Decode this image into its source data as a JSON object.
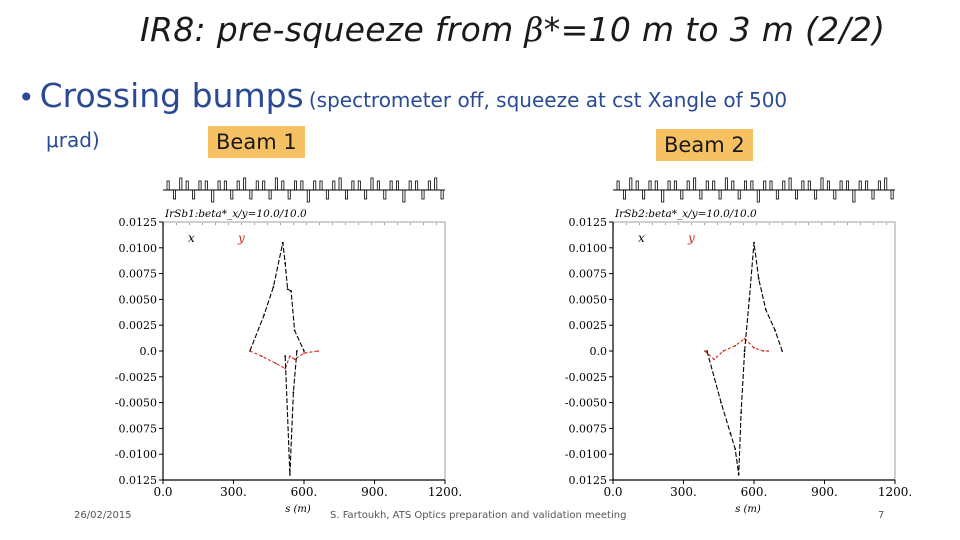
{
  "slide": {
    "title_prefix": "IR8: pre-squeeze from ",
    "title_beta": "β",
    "title_suffix": "*=10 m to 3 m (2/2)",
    "bullet_main": "Crossing bumps",
    "bullet_detail": "(spectrometer off, squeeze at cst Xangle of 500",
    "bullet_cont": "μrad)",
    "footer_date": "26/02/2015",
    "footer_center": "S. Fartoukh,  ATS Optics preparation and validation meeting",
    "footer_page": "7"
  },
  "colors": {
    "title": "#1a1a1a",
    "bullet": "#2b4a96",
    "beam_label_bg": "#f5c163",
    "series_x": "#000000",
    "series_y": "#cc2a1a"
  },
  "chart_data": [
    {
      "type": "line",
      "panel_label": "Beam 1",
      "plot_title": "IrSb1:beta*_x/y=10.0/10.0",
      "xlabel": "s (m)",
      "x_ticks": [
        "0.0",
        "300.",
        "600.",
        "900.",
        "1200."
      ],
      "y_ticks": [
        "0.0125",
        "0.0100",
        "0.0075",
        "0.0050",
        "0.0025",
        "0.0",
        "-0.0025",
        "-0.0050",
        "0.0075",
        "-0.0100",
        "0.0125"
      ],
      "xlim": [
        0,
        1200
      ],
      "ylim": [
        -0.0125,
        0.0125
      ],
      "legend": [
        "x",
        "y"
      ],
      "series": [
        {
          "name": "x",
          "x": [
            370,
            430,
            470,
            510,
            520,
            530,
            545,
            560,
            600
          ],
          "y": [
            0.0,
            0.0035,
            0.0062,
            0.0105,
            0.0085,
            0.006,
            0.0058,
            0.002,
            0.0
          ]
        },
        {
          "name": "y",
          "x": [
            370,
            420,
            480,
            520,
            540,
            560,
            600,
            660
          ],
          "y": [
            0.0,
            -0.0005,
            -0.0012,
            -0.0017,
            -0.0005,
            -0.0008,
            -0.0002,
            0.0
          ]
        },
        {
          "name": "x",
          "x": [
            520,
            540,
            555,
            570
          ],
          "y": [
            -0.0005,
            -0.012,
            -0.004,
            0.0
          ]
        }
      ]
    },
    {
      "type": "line",
      "panel_label": "Beam 2",
      "plot_title": "IrSb2:beta*_x/y=10.0/10.0",
      "xlabel": "s (m)",
      "x_ticks": [
        "0.0",
        "300.",
        "600.",
        "900.",
        "1200."
      ],
      "y_ticks": [
        "0.0125",
        "0.0100",
        "0.0075",
        "0.0050",
        "0.0025",
        "0.0",
        "-0.0025",
        "-0.0050",
        "0.0075",
        "-0.0100",
        "0.0125"
      ],
      "xlim": [
        0,
        1200
      ],
      "ylim": [
        -0.0125,
        0.0125
      ],
      "legend": [
        "x",
        "y"
      ],
      "series": [
        {
          "name": "x",
          "x": [
            400,
            460,
            500,
            520,
            535,
            545,
            560
          ],
          "y": [
            0.0,
            -0.005,
            -0.008,
            -0.0095,
            -0.012,
            -0.006,
            0.0
          ]
        },
        {
          "name": "y",
          "x": [
            390,
            430,
            470,
            520,
            560,
            600,
            640,
            660
          ],
          "y": [
            0.0,
            -0.0008,
            0.0,
            0.0005,
            0.0012,
            0.0003,
            0.0,
            0.0
          ]
        },
        {
          "name": "x",
          "x": [
            560,
            580,
            600,
            620,
            650,
            690,
            720
          ],
          "y": [
            0.0,
            0.005,
            0.0105,
            0.007,
            0.004,
            0.002,
            0.0
          ]
        }
      ]
    }
  ]
}
